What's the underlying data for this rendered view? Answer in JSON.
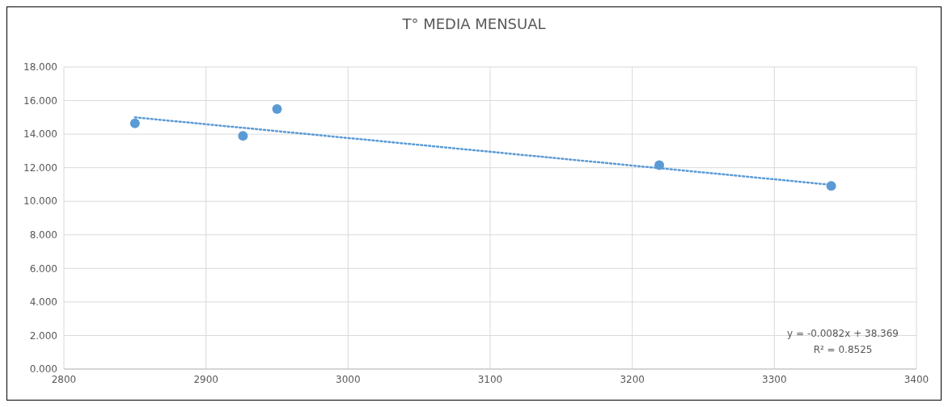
{
  "chart_data": {
    "type": "scatter",
    "title": "T° MEDIA MENSUAL",
    "series": [
      {
        "type": "scatter",
        "x": [
          2850,
          2926,
          2950,
          3219,
          3340
        ],
        "values": [
          14.64,
          13.9,
          15.5,
          12.15,
          10.91
        ],
        "color": "#5b9bd5",
        "marker": "circle"
      },
      {
        "type": "line",
        "x": [
          2850,
          3340
        ],
        "values": [
          15.0,
          10.98
        ],
        "color": "#5b9bd5",
        "line_style": "dotted",
        "marker": "none"
      }
    ],
    "xlim": [
      2800,
      3400
    ],
    "xticks": [
      2800,
      2900,
      3000,
      3100,
      3200,
      3300,
      3400
    ],
    "ylim": [
      0,
      18
    ],
    "yticks": [
      {
        "value": 0,
        "label": "0.000"
      },
      {
        "value": 2,
        "label": "2.000"
      },
      {
        "value": 4,
        "label": "4.000"
      },
      {
        "value": 6,
        "label": "6.000"
      },
      {
        "value": 8,
        "label": "8.000"
      },
      {
        "value": 10,
        "label": "10.000"
      },
      {
        "value": 12,
        "label": "12.000"
      },
      {
        "value": 14,
        "label": "14.000"
      },
      {
        "value": 16,
        "label": "16.000"
      },
      {
        "value": 18,
        "label": "18.000"
      }
    ],
    "grid": true,
    "legend": false,
    "annotations": [
      "y = -0.0082x + 38.369",
      "R² = 0.8525"
    ]
  }
}
